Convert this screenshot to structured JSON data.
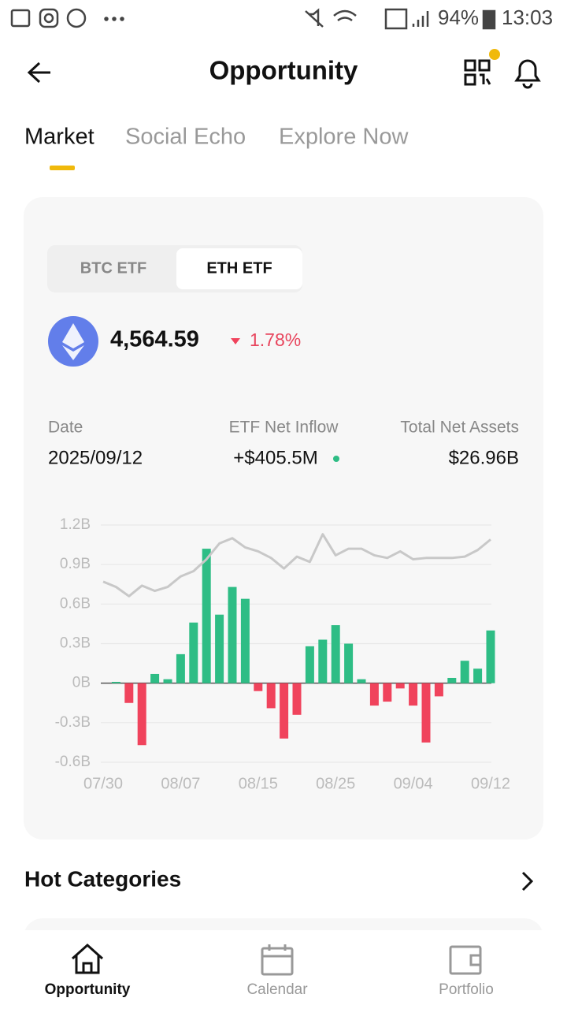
{
  "status_bar": {
    "battery": "94%",
    "time": "13:03"
  },
  "header": {
    "title": "Opportunity"
  },
  "tabs": [
    "Market",
    "Social Echo",
    "Explore Now"
  ],
  "segments": [
    "BTC ETF",
    "ETH ETF"
  ],
  "price": {
    "value": "4,564.59",
    "change": "1.78%"
  },
  "stats": [
    {
      "label": "Date",
      "value": "2025/09/12"
    },
    {
      "label": "ETF Net Inflow",
      "value": "+$405.5M"
    },
    {
      "label": "Total Net Assets",
      "value": "$26.96B"
    }
  ],
  "chart_data": {
    "type": "bar",
    "categories": [
      "07/30",
      null,
      null,
      null,
      null,
      null,
      "08/07",
      null,
      null,
      null,
      null,
      null,
      "08/15",
      null,
      null,
      null,
      null,
      null,
      "08/25",
      null,
      null,
      null,
      null,
      null,
      "09/04",
      null,
      null,
      null,
      null,
      null,
      "09/12"
    ],
    "series": [
      {
        "type": "bar",
        "color": "#2ebd85",
        "negative_color": "#f0435c",
        "values": [
          0.0,
          0.01,
          -0.15,
          -0.47,
          0.07,
          0.03,
          0.22,
          0.46,
          1.02,
          0.52,
          0.73,
          0.64,
          -0.06,
          -0.19,
          -0.42,
          -0.24,
          0.28,
          0.33,
          0.44,
          0.3,
          0.03,
          -0.17,
          -0.14,
          -0.04,
          -0.17,
          -0.45,
          -0.1,
          0.04,
          0.17,
          0.11,
          0.4
        ]
      },
      {
        "type": "line",
        "color": "#c8c8c8",
        "values": [
          0.77,
          0.73,
          0.66,
          0.74,
          0.7,
          0.73,
          0.81,
          0.85,
          0.94,
          1.06,
          1.1,
          1.03,
          1.0,
          0.95,
          0.87,
          0.96,
          0.92,
          1.13,
          0.97,
          1.02,
          1.02,
          0.97,
          0.95,
          1.0,
          0.94,
          0.95,
          0.95,
          0.95,
          0.96,
          1.01,
          1.09
        ]
      }
    ],
    "ylim": [
      -0.6,
      1.2
    ],
    "yticks": [
      {
        "value": 1.2,
        "label": "1.2B"
      },
      {
        "value": 0.9,
        "label": "0.9B"
      },
      {
        "value": 0.6,
        "label": "0.6B"
      },
      {
        "value": 0.3,
        "label": "0.3B"
      },
      {
        "value": 0,
        "label": "0B"
      },
      {
        "value": -0.3,
        "label": "-0.3B"
      },
      {
        "value": -0.6,
        "label": "-0.6B"
      }
    ],
    "grid": true
  },
  "sections": {
    "hot_categories": "Hot Categories"
  },
  "nav": [
    "Opportunity",
    "Calendar",
    "Portfolio"
  ]
}
